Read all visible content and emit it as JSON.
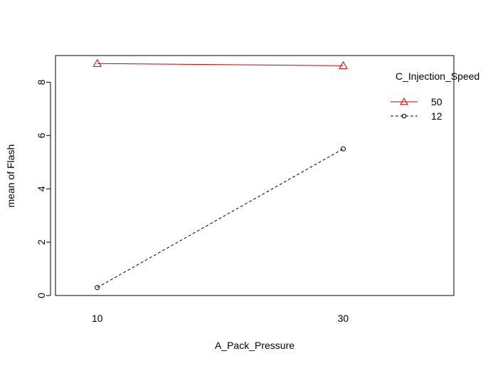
{
  "chart_data": {
    "type": "line",
    "title": "",
    "xlabel": "A_Pack_Pressure",
    "ylabel": "mean of  Flash",
    "categories": [
      "10",
      "30"
    ],
    "xlim": [
      0.83,
      2.45
    ],
    "ylim": [
      0,
      9
    ],
    "yticks": [
      0,
      2,
      4,
      6,
      8
    ],
    "legend": {
      "title": "C_Injection_Speed",
      "placement": "right"
    },
    "series": [
      {
        "name": "50",
        "values": [
          8.7,
          8.62
        ],
        "color": "#cc0000",
        "marker": "triangle",
        "linestyle": "solid"
      },
      {
        "name": "12",
        "values": [
          0.3,
          5.5
        ],
        "color": "#000000",
        "marker": "circle",
        "linestyle": "dashed"
      }
    ]
  }
}
